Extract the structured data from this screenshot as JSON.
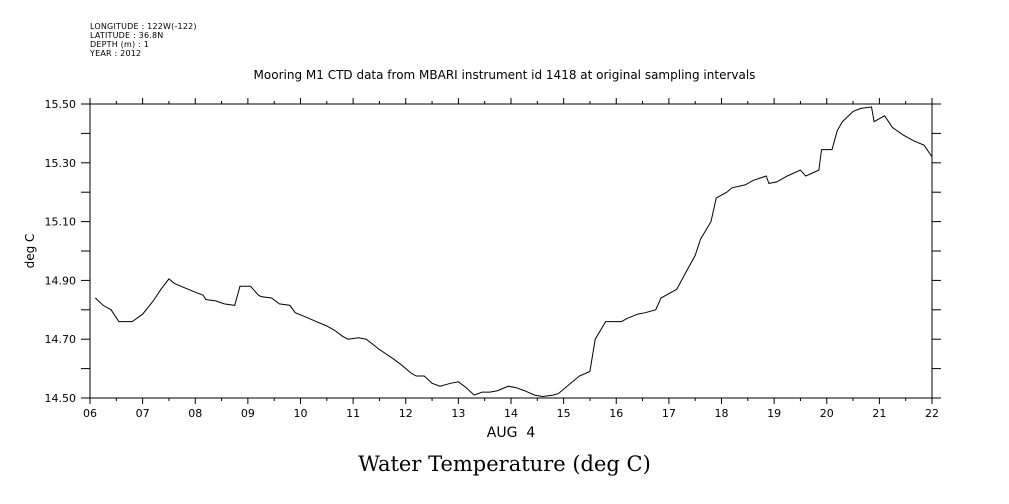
{
  "header": {
    "longitude": "LONGITUDE : 122W(-122)",
    "latitude": "LATITUDE : 36.8N",
    "depth": "DEPTH (m) : 1",
    "year": "YEAR : 2012"
  },
  "chart_data": {
    "type": "line",
    "title": "Mooring M1 CTD data from MBARI instrument id 1418 at original sampling intervals",
    "xlabel": "AUG  4",
    "ylabel": "deg C",
    "bottom_title": "Water Temperature (deg C)",
    "xlim": [
      6,
      22
    ],
    "ylim": [
      14.5,
      15.5
    ],
    "x_tick_labels": [
      "06",
      "07",
      "08",
      "09",
      "10",
      "11",
      "12",
      "13",
      "14",
      "15",
      "16",
      "17",
      "18",
      "19",
      "20",
      "21",
      "22"
    ],
    "y_tick_labels": [
      "14.50",
      "14.70",
      "14.90",
      "15.10",
      "15.30",
      "15.50"
    ],
    "grid": false,
    "series": [
      {
        "color": "#000000",
        "x": [
          6.1,
          6.25,
          6.4,
          6.55,
          6.8,
          7.0,
          7.2,
          7.35,
          7.5,
          7.6,
          7.8,
          8.0,
          8.15,
          8.2,
          8.4,
          8.55,
          8.75,
          8.85,
          9.05,
          9.2,
          9.25,
          9.45,
          9.6,
          9.8,
          9.9,
          10.1,
          10.3,
          10.5,
          10.65,
          10.8,
          10.9,
          11.1,
          11.25,
          11.5,
          11.75,
          11.9,
          12.1,
          12.2,
          12.35,
          12.5,
          12.65,
          12.85,
          13.0,
          13.15,
          13.3,
          13.45,
          13.6,
          13.75,
          13.95,
          14.1,
          14.25,
          14.45,
          14.6,
          14.8,
          14.9,
          15.1,
          15.3,
          15.5,
          15.6,
          15.8,
          16.0,
          16.1,
          16.2,
          16.4,
          16.55,
          16.75,
          16.85,
          17.05,
          17.15,
          17.3,
          17.5,
          17.6,
          17.8,
          17.9,
          18.1,
          18.2,
          18.45,
          18.6,
          18.85,
          18.9,
          19.05,
          19.25,
          19.5,
          19.6,
          19.85,
          19.9,
          20.1,
          20.2,
          20.3,
          20.5,
          20.65,
          20.85,
          20.9,
          21.1,
          21.25,
          21.45,
          21.65,
          21.85,
          22.0
        ],
        "y": [
          14.84,
          14.815,
          14.8,
          14.76,
          14.76,
          14.785,
          14.83,
          14.87,
          14.905,
          14.89,
          14.875,
          14.86,
          14.85,
          14.835,
          14.83,
          14.82,
          14.815,
          14.88,
          14.88,
          14.85,
          14.845,
          14.84,
          14.82,
          14.815,
          14.79,
          14.775,
          14.76,
          14.745,
          14.73,
          14.71,
          14.7,
          14.705,
          14.7,
          14.665,
          14.635,
          14.615,
          14.585,
          14.575,
          14.575,
          14.55,
          14.54,
          14.55,
          14.555,
          14.535,
          14.51,
          14.52,
          14.52,
          14.525,
          14.54,
          14.535,
          14.525,
          14.51,
          14.505,
          14.51,
          14.515,
          14.545,
          14.575,
          14.59,
          14.7,
          14.76,
          14.76,
          14.76,
          14.77,
          14.785,
          14.79,
          14.8,
          14.84,
          14.86,
          14.87,
          14.92,
          14.985,
          15.04,
          15.1,
          15.18,
          15.2,
          15.215,
          15.225,
          15.24,
          15.255,
          15.23,
          15.235,
          15.255,
          15.275,
          15.255,
          15.275,
          15.345,
          15.345,
          15.41,
          15.44,
          15.475,
          15.485,
          15.49,
          15.44,
          15.46,
          15.42,
          15.395,
          15.375,
          15.36,
          15.32
        ]
      }
    ]
  }
}
